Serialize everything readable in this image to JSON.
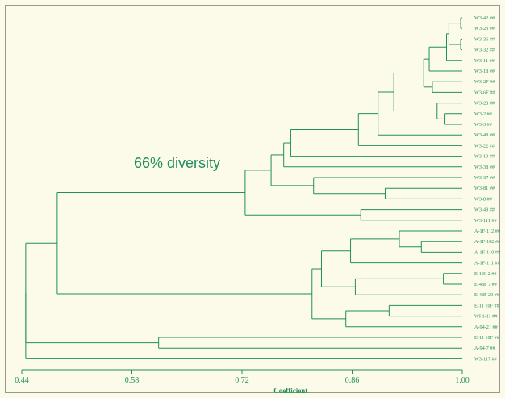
{
  "colors": {
    "line": "#1f8f5f",
    "text": "#1f8f5f",
    "background": "#fcfae8"
  },
  "annotation": "66% diversity",
  "axis": {
    "title": "Coefficient",
    "min": 0.44,
    "max": 1.0,
    "ticks": [
      {
        "value": 0.44,
        "label": "0.44"
      },
      {
        "value": 0.58,
        "label": "0.58"
      },
      {
        "value": 0.72,
        "label": "0.72"
      },
      {
        "value": 0.86,
        "label": "0.86"
      },
      {
        "value": 1.0,
        "label": "1.00"
      }
    ]
  },
  "leaves": [
    "W3-42 ##",
    "W3-23 ##",
    "W3-36 ##",
    "W3-32 ##",
    "W3-11 ##",
    "W3-18 ##",
    "W3-2F ##",
    "W3-6F ##",
    "W3-28 ##",
    "W3-2 ##",
    "W3-3 ##",
    "W3-48 ##",
    "W3-22 ##",
    "W3-10 ##",
    "W3-38 ##",
    "W3-37 ##",
    "W3-81 ##",
    "W3-8 ##",
    "W3-49 ##",
    "W3-111 ##",
    "A-1F-112 ##",
    "A-1F-102 ##",
    "A-1F-110 ##",
    "A-1F-111 ##",
    "E-130 2 ##",
    "E-48F 7 ##",
    "E-48F 20 ##",
    "E-11 10F ##",
    "WI 1-11 ##",
    "A-94-21 ##",
    "E-11 10F ##",
    "A-94-7 ##",
    "W3-117 ##"
  ],
  "tree": {
    "s": 0.445,
    "c": [
      {
        "s": 0.485,
        "c": [
          {
            "s": 0.724,
            "c": [
              {
                "s": 0.757,
                "c": [
                  {
                    "s": 0.773,
                    "c": [
                      {
                        "s": 0.782,
                        "c": [
                          {
                            "s": 0.868,
                            "c": [
                              {
                                "s": 0.893,
                                "c": [
                                  {
                                    "s": 0.913,
                                    "c": [
                                      {
                                        "s": 0.951,
                                        "c": [
                                          {
                                            "s": 0.958,
                                            "c": [
                                              {
                                                "s": 0.98,
                                                "c": [
                                                  {
                                                    "s": 0.983,
                                                    "c": [
                                                      {
                                                        "s": 0.998,
                                                        "c": [
                                                          0,
                                                          1
                                                        ]
                                                      },
                                                      {
                                                        "s": 0.998,
                                                        "c": [
                                                          2,
                                                          3
                                                        ]
                                                      }
                                                    ]
                                                  },
                                                  4
                                                ]
                                              },
                                              5
                                            ]
                                          },
                                          {
                                            "s": 0.962,
                                            "c": [
                                              6,
                                              7
                                            ]
                                          }
                                        ]
                                      },
                                      {
                                        "s": 0.968,
                                        "c": [
                                          8,
                                          {
                                            "s": 0.978,
                                            "c": [
                                              9,
                                              10
                                            ]
                                          }
                                        ]
                                      }
                                    ]
                                  },
                                  11
                                ]
                              },
                              12
                            ]
                          },
                          13
                        ]
                      },
                      14
                    ]
                  },
                  {
                    "s": 0.811,
                    "c": [
                      15,
                      {
                        "s": 0.902,
                        "c": [
                          16,
                          17
                        ]
                      }
                    ]
                  }
                ]
              },
              {
                "s": 0.871,
                "c": [
                  18,
                  19
                ]
              }
            ]
          },
          {
            "s": 0.809,
            "c": [
              {
                "s": 0.821,
                "c": [
                  {
                    "s": 0.858,
                    "c": [
                      {
                        "s": 0.92,
                        "c": [
                          20,
                          {
                            "s": 0.948,
                            "c": [
                              21,
                              22
                            ]
                          }
                        ]
                      },
                      23
                    ]
                  },
                  {
                    "s": 0.864,
                    "c": [
                      {
                        "s": 0.976,
                        "c": [
                          24,
                          25
                        ]
                      },
                      26
                    ]
                  }
                ]
              },
              {
                "s": 0.852,
                "c": [
                  {
                    "s": 0.907,
                    "c": [
                      27,
                      28
                    ]
                  },
                  29
                ]
              }
            ]
          }
        ]
      },
      {
        "s": 0.614,
        "c": [
          30,
          31
        ]
      }
    ]
  },
  "singleton": {
    "leaf": 32,
    "joins_at": 0.445
  }
}
